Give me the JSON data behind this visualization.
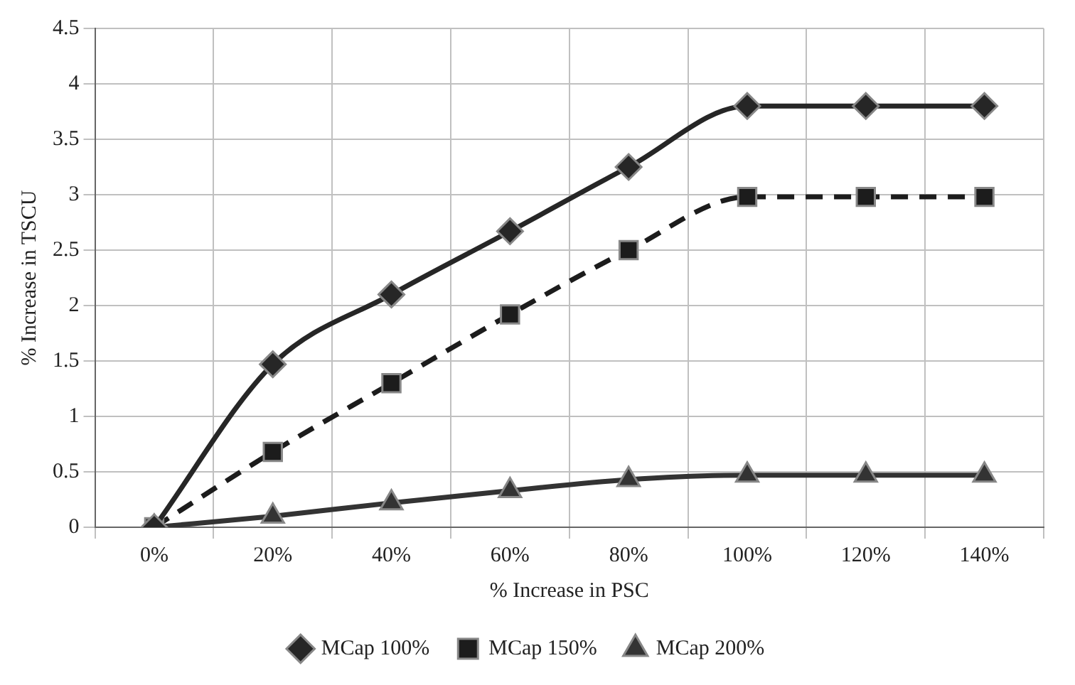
{
  "chart_data": {
    "type": "line",
    "xlabel": "% Increase in PSC",
    "ylabel": "% Increase in TSCU",
    "categories": [
      "0%",
      "20%",
      "40%",
      "60%",
      "80%",
      "100%",
      "120%",
      "140%"
    ],
    "series": [
      {
        "name": "MCap 100%",
        "color": "#262626",
        "marker": "diamond",
        "line_style": "solid",
        "values": [
          0,
          1.47,
          2.1,
          2.67,
          3.25,
          3.8,
          3.8,
          3.8
        ]
      },
      {
        "name": "MCap 150%",
        "color": "#1c1c1c",
        "marker": "square",
        "line_style": "dashed",
        "values": [
          0,
          0.68,
          1.3,
          1.92,
          2.5,
          2.98,
          2.98,
          2.98
        ]
      },
      {
        "name": "MCap 200%",
        "color": "#333333",
        "marker": "triangle",
        "line_style": "solid",
        "values": [
          0,
          0.1,
          0.22,
          0.33,
          0.43,
          0.47,
          0.47,
          0.47
        ]
      }
    ],
    "ylim": [
      0,
      4.5
    ],
    "yticks": [
      0,
      0.5,
      1,
      1.5,
      2,
      2.5,
      3,
      3.5,
      4,
      4.5
    ],
    "grid": true,
    "legend": "bottom"
  }
}
